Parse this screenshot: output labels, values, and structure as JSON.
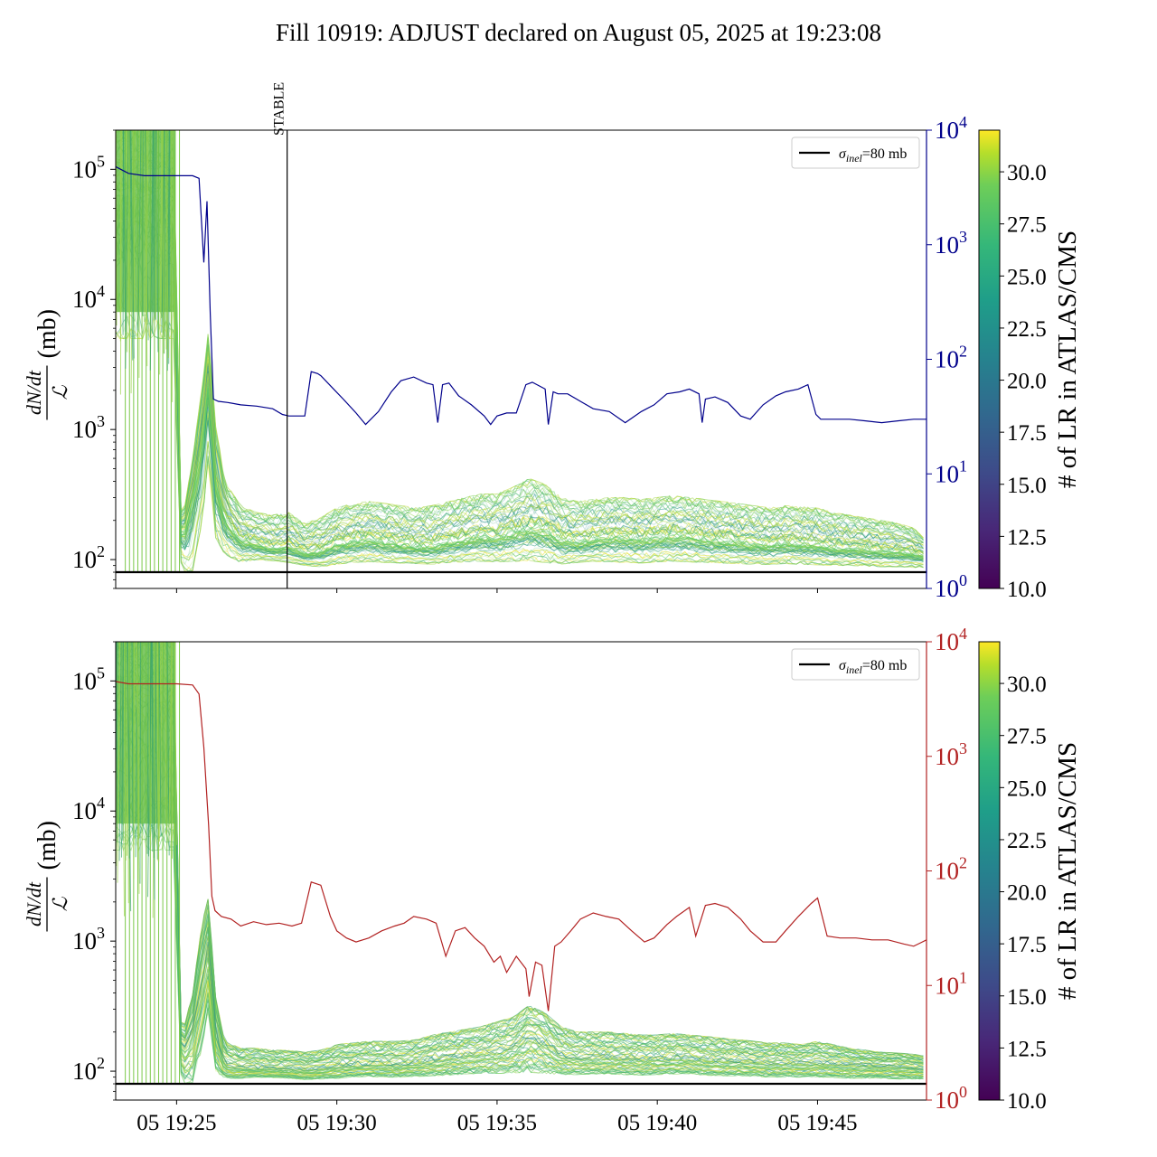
{
  "figure_title": "Fill 10919: ADJUST declared on August 05, 2025 at 19:23:08",
  "chart_data": [
    {
      "type": "line",
      "panel": "top",
      "ylabel": "dN/dt / ℒ (mb)",
      "ylabel_parts": {
        "num": "dN/dt",
        "den": "ℒ",
        "unit": "(mb)"
      },
      "yscale": "log",
      "ylim": [
        60,
        200000
      ],
      "yticks": [
        {
          "value": 100,
          "base": "10",
          "exp": "2"
        },
        {
          "value": 1000,
          "base": "10",
          "exp": "3"
        },
        {
          "value": 10000,
          "base": "10",
          "exp": "4"
        },
        {
          "value": 100000,
          "base": "10",
          "exp": "5"
        }
      ],
      "xlim_minutes": [
        23.1,
        48.4
      ],
      "xticks": [
        {
          "minute": 25,
          "label": "05 19:25"
        },
        {
          "minute": 30,
          "label": "05 19:30"
        },
        {
          "minute": 35,
          "label": "05 19:35"
        },
        {
          "minute": 40,
          "label": "05 19:40"
        },
        {
          "minute": 45,
          "label": "05 19:45"
        }
      ],
      "show_xtick_labels": false,
      "reference_line": {
        "value": 80,
        "legend_symbol": "σ",
        "legend_sub": "inel",
        "legend_rest": "=80 mb",
        "legend_position": "upper right"
      },
      "vline": {
        "minute": 28.45,
        "label": "STABLE"
      },
      "secondary_axis": {
        "color": "#00008b",
        "yscale": "log",
        "ylim": [
          1,
          10000
        ],
        "yticks": [
          {
            "value": 1,
            "base": "10",
            "exp": "0"
          },
          {
            "value": 10,
            "base": "10",
            "exp": "1"
          },
          {
            "value": 100,
            "base": "10",
            "exp": "2"
          },
          {
            "value": 1000,
            "base": "10",
            "exp": "3"
          },
          {
            "value": 10000,
            "base": "10",
            "exp": "4"
          }
        ],
        "series": {
          "x": [
            23.1,
            23.5,
            24,
            24.5,
            25,
            25.5,
            25.7,
            25.85,
            25.95,
            26.05,
            26.15,
            26.3,
            26.6,
            27,
            27.5,
            28.0,
            28.3,
            28.5,
            29.0,
            29.2,
            29.4,
            29.5,
            29.9,
            30.2,
            30.6,
            30.9,
            31.3,
            31.7,
            32.0,
            32.4,
            32.8,
            33.0,
            33.15,
            33.3,
            33.5,
            33.8,
            34.2,
            34.6,
            34.8,
            35.0,
            35.3,
            35.6,
            35.9,
            36.1,
            36.5,
            36.6,
            36.75,
            36.9,
            37.2,
            37.6,
            38.0,
            38.5,
            39.0,
            39.5,
            39.9,
            40.3,
            40.7,
            41.0,
            41.3,
            41.4,
            41.5,
            41.8,
            42.2,
            42.6,
            42.9,
            43.3,
            43.7,
            44.0,
            44.4,
            44.7,
            44.95,
            45.1,
            45.5,
            46.0,
            46.5,
            47.0,
            47.5,
            48.0,
            48.4
          ],
          "y": [
            4800,
            4200,
            4000,
            4000,
            4000,
            4000,
            3800,
            700,
            2400,
            250,
            45,
            43,
            42,
            40,
            39,
            37,
            33,
            32,
            32,
            78,
            75,
            72,
            55,
            45,
            34,
            27,
            35,
            52,
            65,
            70,
            62,
            60,
            28,
            60,
            62,
            48,
            40,
            32,
            27,
            32,
            34,
            34,
            60,
            63,
            55,
            27,
            52,
            50,
            50,
            43,
            37,
            35,
            28,
            35,
            40,
            50,
            52,
            55,
            50,
            28,
            45,
            47,
            42,
            32,
            30,
            40,
            48,
            52,
            55,
            60,
            33,
            30,
            30,
            30,
            29,
            28,
            29,
            30,
            30
          ]
        }
      },
      "primary_band": {
        "x": [
          23.1,
          24.9,
          25.15,
          25.5,
          25.8,
          26.0,
          26.2,
          26.5,
          27.0,
          27.5,
          28.0,
          28.5,
          29.0,
          29.5,
          30.0,
          30.5,
          31.0,
          31.5,
          32.0,
          32.5,
          33.0,
          33.5,
          34.0,
          34.5,
          35.0,
          35.5,
          36.0,
          36.5,
          37.0,
          37.5,
          38.0,
          38.5,
          39.0,
          39.5,
          40.0,
          40.5,
          41.0,
          41.5,
          42.0,
          42.5,
          43.0,
          43.5,
          44.0,
          44.5,
          45.0,
          45.5,
          46.0,
          46.5,
          47.0,
          47.5,
          48.0,
          48.4
        ],
        "low": [
          5000,
          5000,
          80,
          82,
          200,
          600,
          150,
          110,
          95,
          100,
          98,
          95,
          90,
          88,
          92,
          95,
          96,
          95,
          94,
          93,
          92,
          95,
          96,
          97,
          96,
          97,
          98,
          95,
          92,
          95,
          97,
          96,
          95,
          94,
          96,
          97,
          96,
          95,
          94,
          93,
          92,
          92,
          93,
          92,
          91,
          90,
          90,
          89,
          88,
          88,
          87,
          87
        ],
        "mid": [
          60000,
          60000,
          130,
          300,
          800,
          2500,
          400,
          200,
          140,
          130,
          120,
          125,
          110,
          115,
          130,
          135,
          140,
          135,
          130,
          125,
          125,
          135,
          140,
          150,
          145,
          160,
          170,
          165,
          140,
          135,
          140,
          145,
          145,
          140,
          145,
          150,
          148,
          140,
          138,
          135,
          130,
          128,
          132,
          130,
          128,
          122,
          120,
          118,
          115,
          113,
          110,
          105
        ],
        "high": [
          200000,
          200000,
          180,
          600,
          2200,
          6000,
          1200,
          400,
          260,
          230,
          220,
          230,
          190,
          210,
          250,
          270,
          280,
          270,
          260,
          250,
          260,
          280,
          300,
          320,
          320,
          360,
          420,
          380,
          300,
          280,
          290,
          300,
          300,
          290,
          300,
          310,
          300,
          290,
          280,
          270,
          260,
          250,
          260,
          255,
          250,
          230,
          220,
          210,
          200,
          190,
          175,
          140
        ]
      }
    },
    {
      "type": "line",
      "panel": "bottom",
      "ylabel": "dN/dt / ℒ (mb)",
      "ylabel_parts": {
        "num": "dN/dt",
        "den": "ℒ",
        "unit": "(mb)"
      },
      "yscale": "log",
      "ylim": [
        60,
        200000
      ],
      "yticks": [
        {
          "value": 100,
          "base": "10",
          "exp": "2"
        },
        {
          "value": 1000,
          "base": "10",
          "exp": "3"
        },
        {
          "value": 10000,
          "base": "10",
          "exp": "4"
        },
        {
          "value": 100000,
          "base": "10",
          "exp": "5"
        }
      ],
      "xlim_minutes": [
        23.1,
        48.4
      ],
      "xticks": [
        {
          "minute": 25,
          "label": "05 19:25"
        },
        {
          "minute": 30,
          "label": "05 19:30"
        },
        {
          "minute": 35,
          "label": "05 19:35"
        },
        {
          "minute": 40,
          "label": "05 19:40"
        },
        {
          "minute": 45,
          "label": "05 19:45"
        }
      ],
      "show_xtick_labels": true,
      "reference_line": {
        "value": 80,
        "legend_symbol": "σ",
        "legend_sub": "inel",
        "legend_rest": "=80 mb",
        "legend_position": "upper right"
      },
      "secondary_axis": {
        "color": "#b22222",
        "yscale": "log",
        "ylim": [
          1,
          10000
        ],
        "yticks": [
          {
            "value": 1,
            "base": "10",
            "exp": "0"
          },
          {
            "value": 10,
            "base": "10",
            "exp": "1"
          },
          {
            "value": 100,
            "base": "10",
            "exp": "2"
          },
          {
            "value": 1000,
            "base": "10",
            "exp": "3"
          },
          {
            "value": 10000,
            "base": "10",
            "exp": "4"
          }
        ],
        "series": {
          "x": [
            23.1,
            23.5,
            24,
            24.5,
            25,
            25.5,
            25.7,
            25.85,
            26.0,
            26.1,
            26.2,
            26.4,
            26.7,
            27.0,
            27.4,
            27.8,
            28.2,
            28.6,
            28.9,
            29.2,
            29.5,
            29.8,
            30.0,
            30.3,
            30.6,
            31.0,
            31.4,
            31.8,
            32.1,
            32.4,
            32.8,
            33.1,
            33.4,
            33.7,
            34.0,
            34.3,
            34.6,
            34.9,
            35.1,
            35.3,
            35.6,
            35.9,
            36.0,
            36.2,
            36.4,
            36.6,
            36.8,
            37.0,
            37.3,
            37.6,
            38.0,
            38.4,
            38.8,
            39.2,
            39.6,
            39.9,
            40.3,
            40.6,
            41.0,
            41.2,
            41.5,
            41.8,
            42.2,
            42.6,
            42.9,
            43.3,
            43.7,
            44.0,
            44.4,
            44.8,
            45.0,
            45.3,
            45.7,
            46.2,
            46.7,
            47.2,
            47.7,
            48.0,
            48.4
          ],
          "y": [
            4500,
            4300,
            4300,
            4300,
            4300,
            4200,
            3500,
            1200,
            250,
            60,
            45,
            40,
            38,
            33,
            36,
            34,
            35,
            33,
            35,
            80,
            75,
            40,
            30,
            26,
            24,
            26,
            30,
            33,
            35,
            40,
            38,
            35,
            18,
            30,
            32,
            26,
            22,
            16,
            18,
            13,
            18,
            14,
            8,
            16,
            15,
            6,
            22,
            24,
            30,
            38,
            43,
            40,
            38,
            30,
            24,
            26,
            34,
            40,
            48,
            27,
            50,
            52,
            48,
            38,
            30,
            24,
            24,
            30,
            40,
            52,
            58,
            27,
            26,
            26,
            25,
            25,
            23,
            22,
            25
          ]
        }
      },
      "primary_band": {
        "x": [
          23.1,
          24.9,
          25.15,
          25.5,
          25.8,
          26.0,
          26.2,
          26.5,
          27.0,
          27.5,
          28.0,
          28.5,
          29.0,
          29.5,
          30.0,
          30.5,
          31.0,
          31.5,
          32.0,
          32.5,
          33.0,
          33.5,
          34.0,
          34.5,
          35.0,
          35.5,
          36.0,
          36.5,
          37.0,
          37.5,
          38.0,
          38.5,
          39.0,
          39.5,
          40.0,
          40.5,
          41.0,
          41.5,
          42.0,
          42.5,
          43.0,
          43.5,
          44.0,
          44.5,
          45.0,
          45.5,
          46.0,
          46.5,
          47.0,
          47.5,
          48.0,
          48.4
        ],
        "low": [
          5000,
          5000,
          80,
          82,
          150,
          300,
          100,
          88,
          88,
          90,
          89,
          88,
          86,
          87,
          88,
          90,
          91,
          90,
          90,
          91,
          92,
          93,
          95,
          96,
          96,
          97,
          98,
          96,
          94,
          94,
          95,
          95,
          94,
          93,
          94,
          95,
          95,
          93,
          92,
          92,
          91,
          90,
          90,
          90,
          90,
          89,
          88,
          88,
          88,
          87,
          87,
          87
        ],
        "mid": [
          60000,
          60000,
          130,
          200,
          500,
          900,
          200,
          110,
          105,
          105,
          104,
          104,
          102,
          103,
          108,
          110,
          112,
          112,
          112,
          115,
          120,
          125,
          130,
          135,
          140,
          150,
          180,
          160,
          130,
          125,
          125,
          125,
          124,
          122,
          122,
          123,
          123,
          120,
          118,
          117,
          116,
          114,
          114,
          113,
          114,
          112,
          110,
          110,
          108,
          107,
          106,
          104
        ],
        "high": [
          200000,
          200000,
          180,
          400,
          1400,
          2200,
          400,
          170,
          150,
          150,
          145,
          145,
          140,
          145,
          160,
          165,
          170,
          170,
          170,
          175,
          190,
          200,
          210,
          220,
          240,
          260,
          320,
          280,
          220,
          200,
          200,
          200,
          195,
          190,
          190,
          195,
          190,
          185,
          180,
          175,
          170,
          165,
          165,
          160,
          170,
          160,
          150,
          145,
          140,
          138,
          135,
          130
        ]
      }
    }
  ],
  "colorbars": [
    {
      "label": "# of LR in ATLAS/CMS",
      "range": [
        10.0,
        32.0
      ],
      "tick_labels": [
        "10.0",
        "12.5",
        "15.0",
        "17.5",
        "20.0",
        "22.5",
        "25.0",
        "27.5",
        "30.0"
      ],
      "tick_values": [
        10.0,
        12.5,
        15.0,
        17.5,
        20.0,
        22.5,
        25.0,
        27.5,
        30.0
      ],
      "colormap": "viridis"
    },
    {
      "label": "# of LR in ATLAS/CMS",
      "range": [
        10.0,
        32.0
      ],
      "tick_labels": [
        "10.0",
        "12.5",
        "15.0",
        "17.5",
        "20.0",
        "22.5",
        "25.0",
        "27.5",
        "30.0"
      ],
      "tick_values": [
        10.0,
        12.5,
        15.0,
        17.5,
        20.0,
        22.5,
        25.0,
        27.5,
        30.0
      ],
      "colormap": "viridis"
    }
  ],
  "colors": {
    "reference_line": "#000000",
    "band_green": "#7cc94a",
    "band_teal": "#2a9d8f",
    "band_yellow": "#c8e03a",
    "axis": "#000000"
  }
}
